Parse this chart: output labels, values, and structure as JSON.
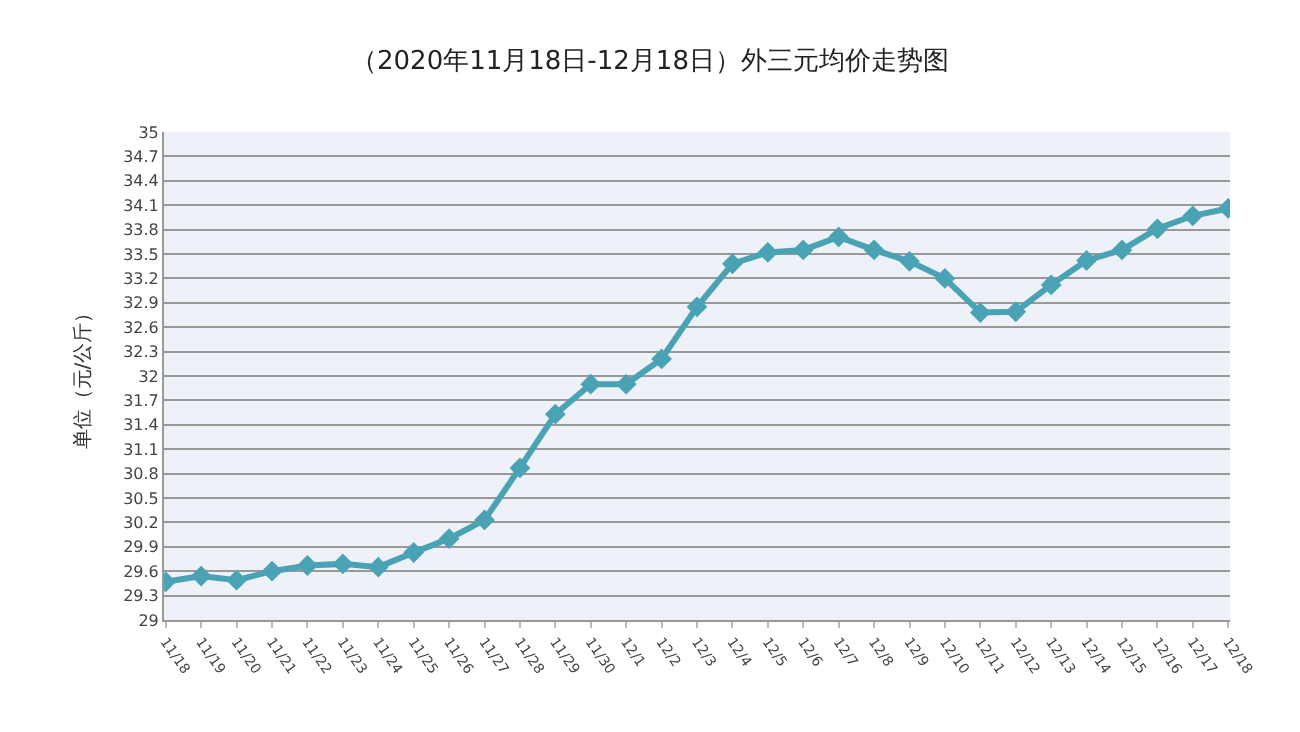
{
  "chart_data": {
    "type": "line",
    "title": "（2020年11月18日-12月18日）外三元均价走势图",
    "ylabel": "单位（元/公斤）",
    "categories": [
      "11/18",
      "11/19",
      "11/20",
      "11/21",
      "11/22",
      "11/23",
      "11/24",
      "11/25",
      "11/26",
      "11/27",
      "11/28",
      "11/29",
      "11/30",
      "12/1",
      "12/2",
      "12/3",
      "12/4",
      "12/5",
      "12/6",
      "12/7",
      "12/8",
      "12/9",
      "12/10",
      "12/11",
      "12/12",
      "12/13",
      "12/14",
      "12/15",
      "12/16",
      "12/17",
      "12/18"
    ],
    "series": [
      {
        "color": "#4aa3b5",
        "values": [
          29.47,
          29.54,
          29.49,
          29.6,
          29.67,
          29.69,
          29.65,
          29.83,
          30.0,
          30.23,
          30.87,
          31.53,
          31.9,
          31.9,
          32.21,
          32.85,
          33.38,
          33.52,
          33.55,
          33.71,
          33.55,
          33.41,
          33.2,
          32.78,
          32.79,
          33.12,
          33.42,
          33.55,
          33.81,
          33.97,
          34.06
        ]
      }
    ],
    "ylim": [
      29,
      35
    ],
    "yticks": [
      29,
      29.3,
      29.6,
      29.9,
      30.2,
      30.5,
      30.8,
      31.1,
      31.4,
      31.7,
      32,
      32.3,
      32.6,
      32.9,
      33.2,
      33.5,
      33.8,
      34.1,
      34.4,
      34.7,
      35
    ],
    "grid": "y",
    "marker": "diamond",
    "line_style": "solid"
  }
}
